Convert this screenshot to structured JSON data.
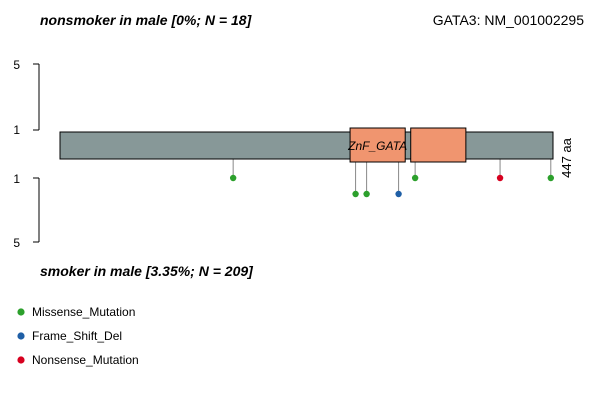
{
  "chart_data": {
    "type": "lollipop",
    "title_top": "nonsmoker in male [0%; N = 18]",
    "title_bottom": "smoker in male [3.35%; N = 209]",
    "gene_label": "GATA3: NM_001002295",
    "protein_length_label": "447 aa",
    "protein_length": 447,
    "y_ticks_top": [
      "5",
      "1"
    ],
    "y_ticks_bottom": [
      "1",
      "5"
    ],
    "domains": [
      {
        "name": "ZnF_GATA",
        "start": 263,
        "end": 313,
        "label": "ZnF_GATA",
        "color": "#F0956F"
      },
      {
        "name": "ZnF_GATA",
        "start": 318,
        "end": 368,
        "label": "",
        "color": "#F0956F"
      }
    ],
    "top_mutations": [],
    "bottom_mutations": [
      {
        "pos": 157,
        "count": 1,
        "type": "Missense_Mutation"
      },
      {
        "pos": 268,
        "count": 1,
        "type": "Missense_Mutation"
      },
      {
        "pos": 278,
        "count": 1,
        "type": "Missense_Mutation"
      },
      {
        "pos": 307,
        "count": 1,
        "type": "Frame_Shift_Del"
      },
      {
        "pos": 322,
        "count": 1,
        "type": "Missense_Mutation"
      },
      {
        "pos": 399,
        "count": 1,
        "type": "Nonsense_Mutation"
      },
      {
        "pos": 445,
        "count": 1,
        "type": "Missense_Mutation"
      }
    ],
    "legend": [
      {
        "label": "Missense_Mutation",
        "color": "#2CA02C"
      },
      {
        "label": "Frame_Shift_Del",
        "color": "#1F5FA6"
      },
      {
        "label": "Nonsense_Mutation",
        "color": "#D7001F"
      }
    ],
    "backbone_color": "#879898"
  }
}
